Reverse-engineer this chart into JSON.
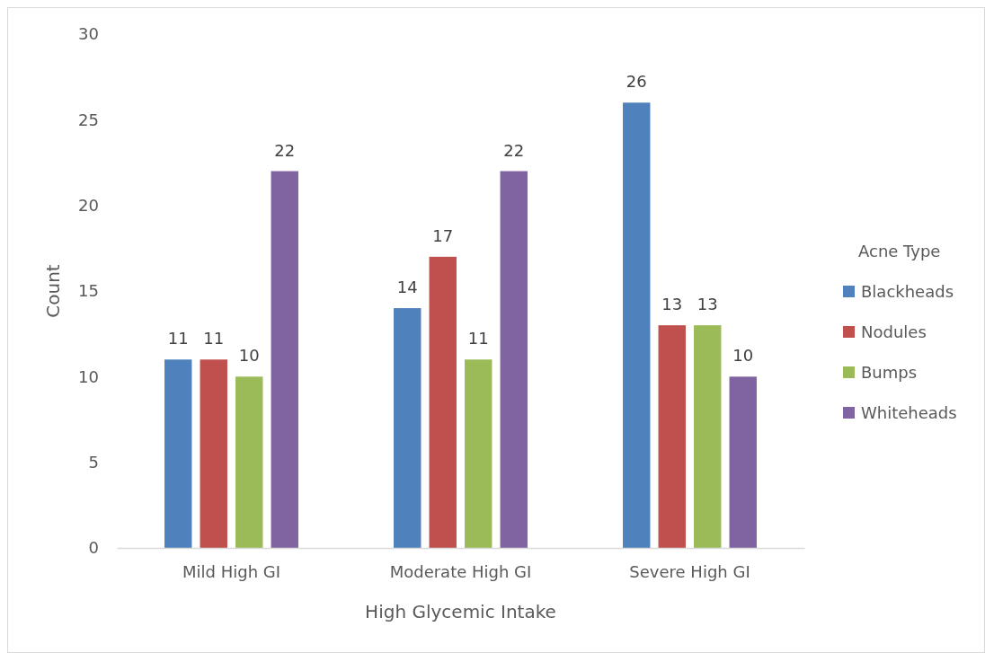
{
  "chart_data": {
    "type": "bar",
    "xlabel": "High Glycemic Intake",
    "ylabel": "Count",
    "legend_title": "Acne Type",
    "categories": [
      "Mild High GI",
      "Moderate High GI",
      "Severe High GI"
    ],
    "series": [
      {
        "name": "Blackheads",
        "color": "#4f81bd",
        "values": [
          11,
          14,
          26
        ]
      },
      {
        "name": "Nodules",
        "color": "#c0504d",
        "values": [
          11,
          17,
          13
        ]
      },
      {
        "name": "Bumps",
        "color": "#9bbb59",
        "values": [
          10,
          11,
          13
        ]
      },
      {
        "name": "Whiteheads",
        "color": "#8064a2",
        "values": [
          22,
          22,
          10
        ]
      }
    ],
    "ylim": [
      0,
      30
    ],
    "yticks": [
      0,
      5,
      10,
      15,
      20,
      25,
      30
    ],
    "data_labels": true,
    "legend": "right"
  }
}
